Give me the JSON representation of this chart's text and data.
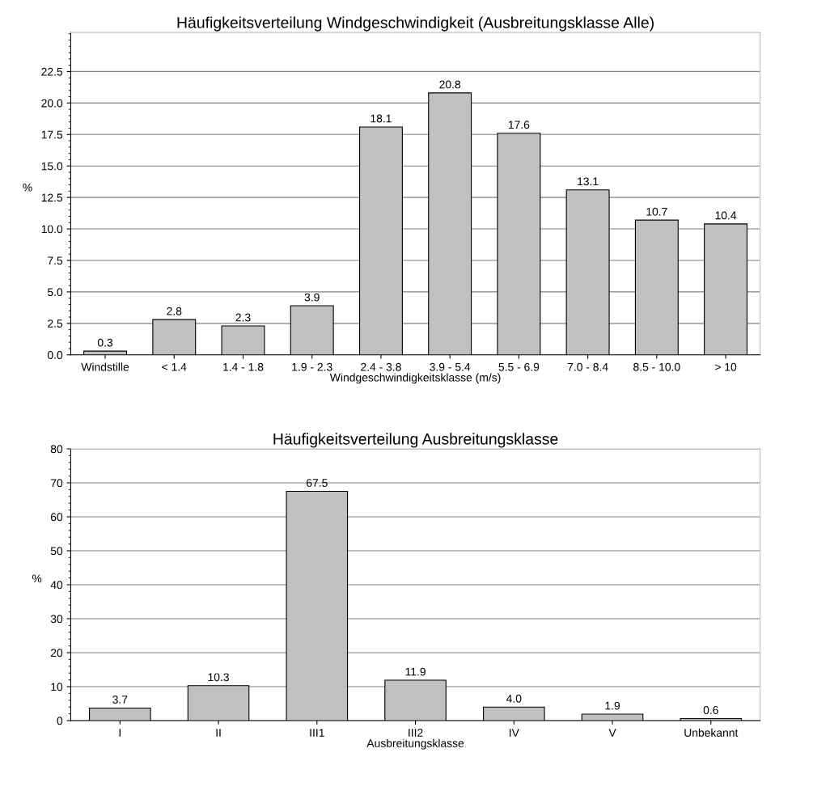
{
  "chart_data": [
    {
      "type": "bar",
      "title": "Häufigkeitsverteilung Windgeschwindigkeit (Ausbreitungsklasse Alle)",
      "xlabel": "Windgeschwindigkeitsklasse (m/s)",
      "ylabel": "%",
      "categories": [
        "Windstille",
        "< 1.4",
        "1.4 - 1.8",
        "1.9 - 2.3",
        "2.4 - 3.8",
        "3.9 - 5.4",
        "5.5 - 6.9",
        "7.0 - 8.4",
        "8.5 - 10.0",
        "> 10"
      ],
      "values": [
        0.3,
        2.8,
        2.3,
        3.9,
        18.1,
        20.8,
        17.6,
        13.1,
        10.7,
        10.4
      ],
      "value_labels": [
        "0.3",
        "2.8",
        "2.3",
        "3.9",
        "18.1",
        "20.8",
        "17.6",
        "13.1",
        "10.7",
        "10.4"
      ],
      "color": "#c0c0c0",
      "ylim": [
        0,
        25.6
      ],
      "yticks": [
        {
          "value": 0,
          "label": "0.0"
        },
        {
          "value": 2.5,
          "label": "2.5"
        },
        {
          "value": 5,
          "label": "5.0"
        },
        {
          "value": 7.5,
          "label": "7.5"
        },
        {
          "value": 10,
          "label": "10.0"
        },
        {
          "value": 12.5,
          "label": "12.5"
        },
        {
          "value": 15,
          "label": "15.0"
        },
        {
          "value": 17.5,
          "label": "17.5"
        },
        {
          "value": 20,
          "label": "20.0"
        },
        {
          "value": 22.5,
          "label": "22.5"
        }
      ],
      "grid": "y"
    },
    {
      "type": "bar",
      "title": "Häufigkeitsverteilung Ausbreitungsklasse",
      "xlabel": "Ausbreitungsklasse",
      "ylabel": "%",
      "categories": [
        "I",
        "II",
        "III1",
        "III2",
        "IV",
        "V",
        "Unbekannt"
      ],
      "values": [
        3.7,
        10.3,
        67.5,
        11.9,
        4.0,
        1.9,
        0.6
      ],
      "value_labels": [
        "3.7",
        "10.3",
        "67.5",
        "11.9",
        "4.0",
        "1.9",
        "0.6"
      ],
      "color": "#c0c0c0",
      "ylim": [
        0,
        80
      ],
      "yticks": [
        0,
        10,
        20,
        30,
        40,
        50,
        60,
        70,
        80
      ],
      "grid": "y"
    }
  ]
}
